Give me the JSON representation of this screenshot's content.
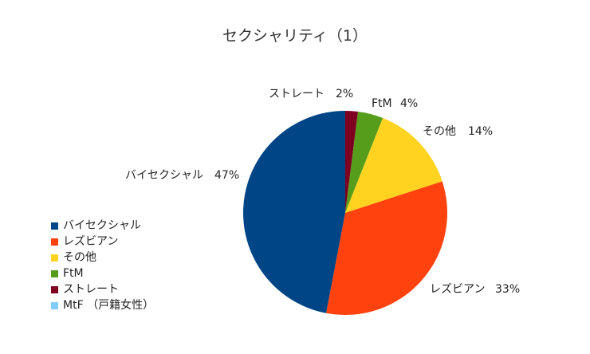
{
  "chart_data": {
    "type": "pie",
    "title": "セクシャリティ（1）",
    "slices": [
      {
        "label": "ストレート",
        "value": 2,
        "pct_label": "2%",
        "color": "#7e0021"
      },
      {
        "label": "FtM",
        "value": 4,
        "pct_label": "4%",
        "color": "#579d1c"
      },
      {
        "label": "その他",
        "value": 14,
        "pct_label": "14%",
        "color": "#ffd320"
      },
      {
        "label": "レズビアン",
        "value": 33,
        "pct_label": "33%",
        "color": "#ff420e"
      },
      {
        "label": "バイセクシャル",
        "value": 47,
        "pct_label": "47%",
        "color": "#004586"
      }
    ],
    "legend": [
      {
        "label": "バイセクシャル",
        "color": "#004586"
      },
      {
        "label": "レズビアン",
        "color": "#ff420e"
      },
      {
        "label": "その他",
        "color": "#ffd320"
      },
      {
        "label": "FtM",
        "color": "#579d1c"
      },
      {
        "label": "ストレート",
        "color": "#7e0021"
      },
      {
        "label": "MtF （戸籍女性）",
        "color": "#83caff"
      }
    ],
    "legend_position": "left"
  }
}
